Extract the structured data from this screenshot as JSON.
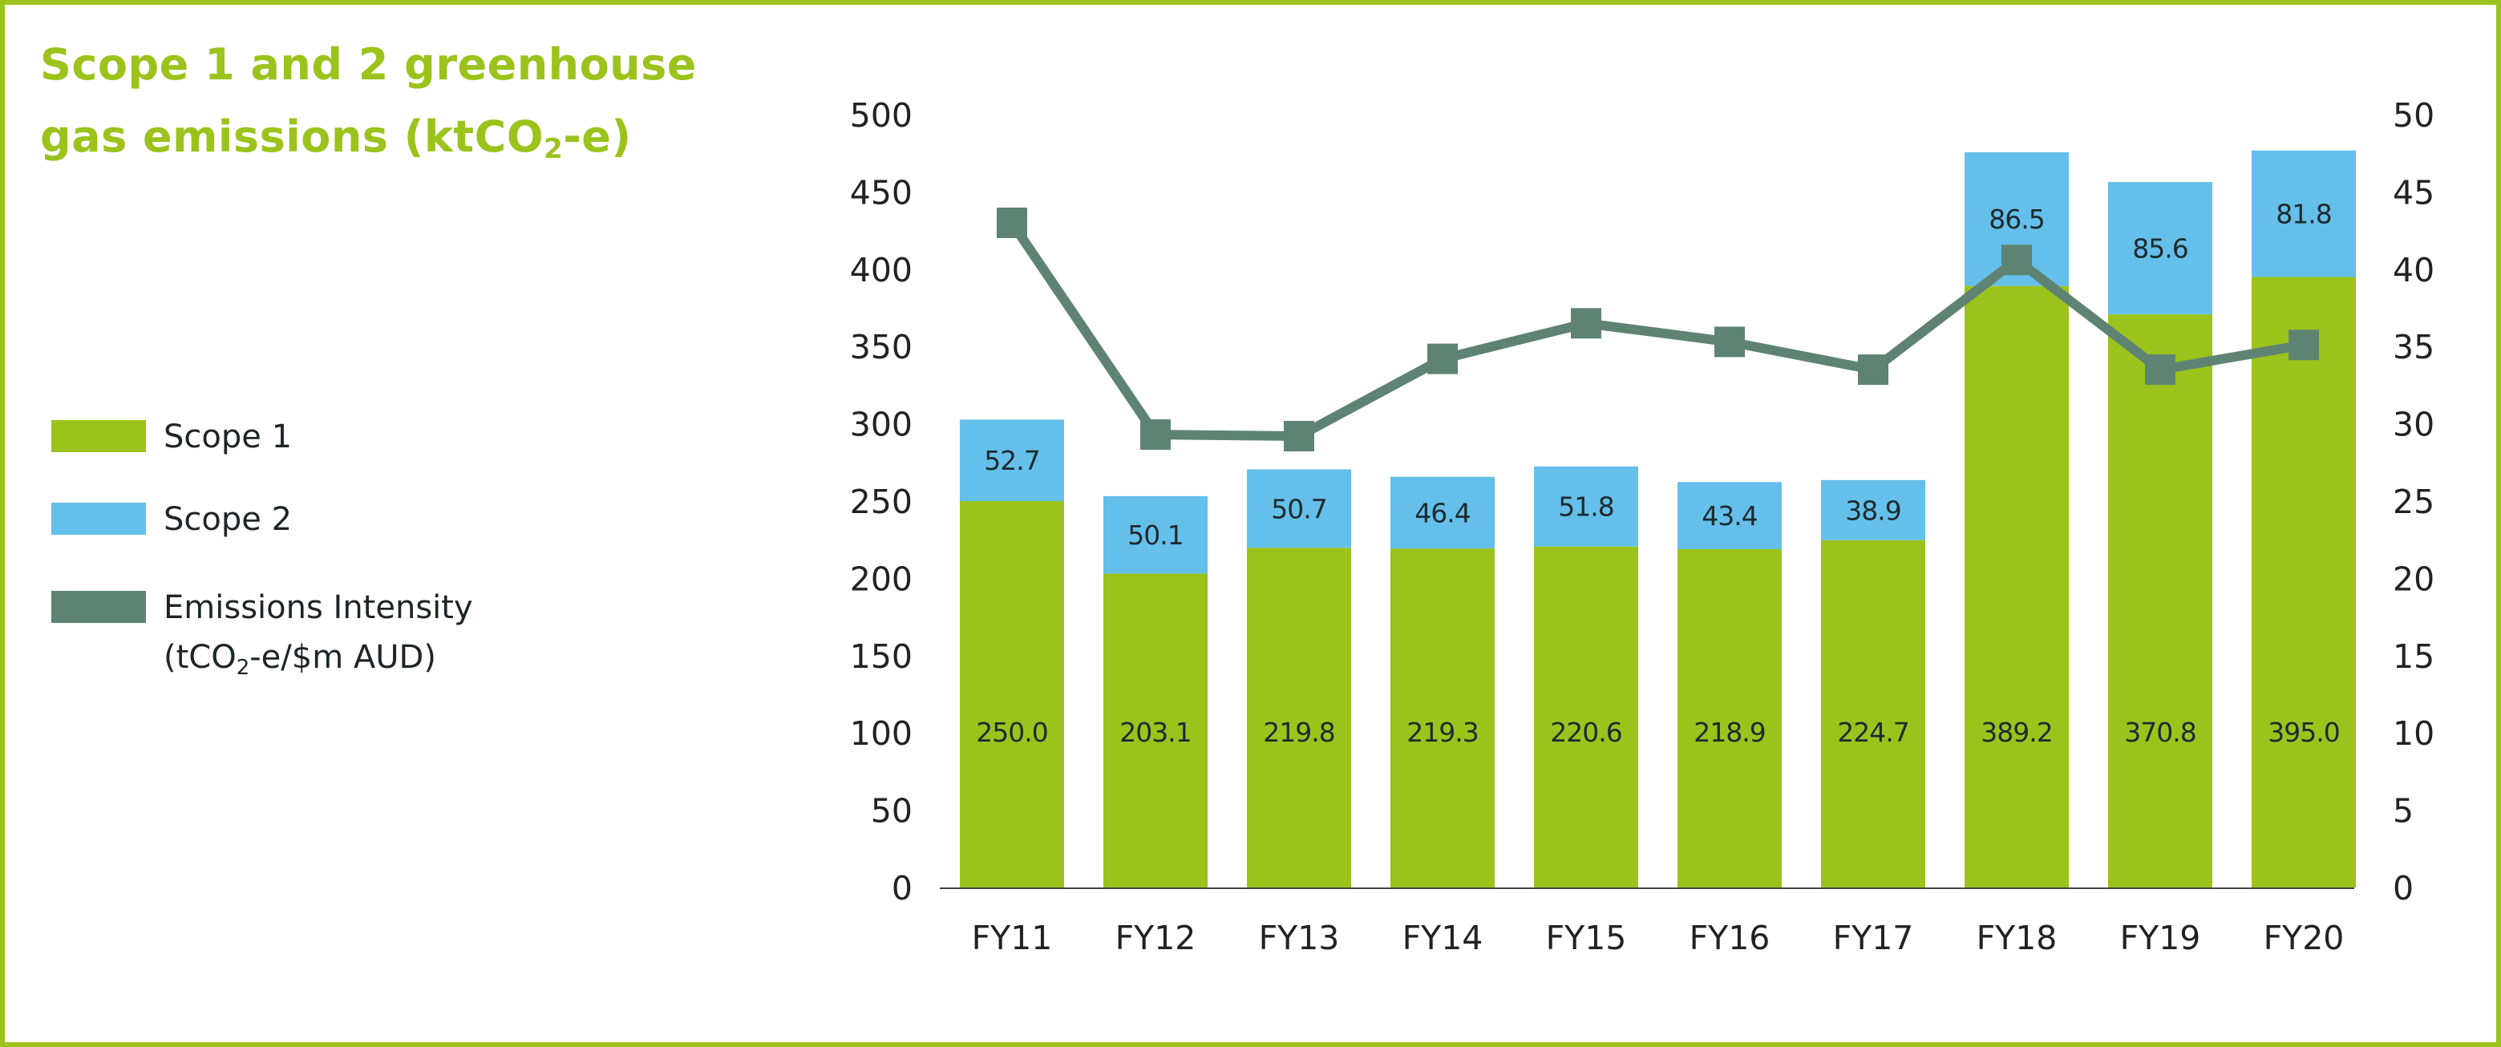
{
  "title": {
    "line1": "Scope 1 and 2 greenhouse",
    "line2_pre": "gas emissions (ktCO",
    "line2_sub": "2",
    "line2_post": "-e)"
  },
  "legend": {
    "scope1": "Scope 1",
    "scope2": "Scope 2",
    "intensity_line1": "Emissions Intensity",
    "intensity_line2_pre": "(tCO",
    "intensity_line2_sub": "2",
    "intensity_line2_post": "-e/$m AUD)"
  },
  "colors": {
    "scope1": "#9bc31c",
    "scope2": "#64c0ea",
    "intensity": "#5e8373",
    "frame": "#9bc31c"
  },
  "chart_data": {
    "type": "bar",
    "stacked": true,
    "categories": [
      "FY11",
      "FY12",
      "FY13",
      "FY14",
      "FY15",
      "FY16",
      "FY17",
      "FY18",
      "FY19",
      "FY20"
    ],
    "series": [
      {
        "name": "Scope 1",
        "axis": "left",
        "values": [
          250.0,
          203.1,
          219.8,
          219.3,
          220.6,
          218.9,
          224.7,
          389.2,
          370.8,
          395.0
        ],
        "labels": [
          "250.0",
          "203.1",
          "219.8",
          "219.3",
          "220.6",
          "218.9",
          "224.7",
          "389.2",
          "370.8",
          "395.0"
        ]
      },
      {
        "name": "Scope 2",
        "axis": "left",
        "values": [
          52.7,
          50.1,
          50.7,
          46.4,
          51.8,
          43.4,
          38.9,
          86.5,
          85.6,
          81.8
        ],
        "labels": [
          "52.7",
          "50.1",
          "50.7",
          "46.4",
          "51.8",
          "43.4",
          "38.9",
          "86.5",
          "85.6",
          "81.8"
        ]
      },
      {
        "name": "Emissions Intensity",
        "axis": "right",
        "type": "line",
        "values": [
          43.0,
          29.3,
          29.2,
          34.2,
          36.5,
          35.3,
          33.5,
          40.6,
          33.5,
          35.1
        ]
      }
    ],
    "ylim": [
      0,
      500
    ],
    "y2lim": [
      0,
      50
    ],
    "yticks": [
      "0",
      "50",
      "100",
      "150",
      "200",
      "250",
      "300",
      "350",
      "400",
      "450",
      "500"
    ],
    "y2ticks": [
      "0",
      "5",
      "10",
      "15",
      "20",
      "25",
      "30",
      "35",
      "40",
      "45",
      "50"
    ],
    "grid": false,
    "legend_position": "left"
  }
}
